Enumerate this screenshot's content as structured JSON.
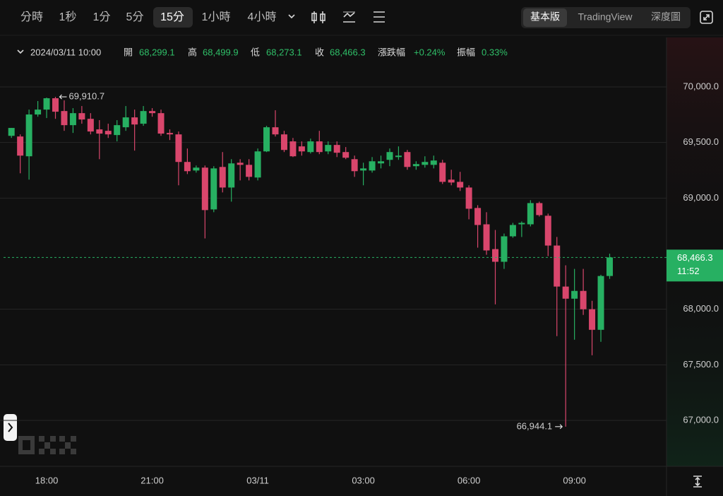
{
  "toolbar": {
    "intervals": [
      "分時",
      "1秒",
      "1分",
      "5分",
      "15分",
      "1小時",
      "4小時"
    ],
    "views": [
      "基本版",
      "TradingView",
      "深度圖"
    ]
  },
  "header": {
    "datetime": "2024/03/11 10:00",
    "fields": [
      {
        "label": "開",
        "value": "68,299.1"
      },
      {
        "label": "高",
        "value": "68,499.9"
      },
      {
        "label": "低",
        "value": "68,273.1"
      },
      {
        "label": "收",
        "value": "68,466.3"
      },
      {
        "label": "漲跌幅",
        "value": "+0.24%"
      },
      {
        "label": "振幅",
        "value": "0.33%"
      }
    ]
  },
  "chart_data": {
    "type": "candlestick",
    "categories": [
      null,
      null,
      null,
      null,
      "18:00",
      null,
      null,
      null,
      null,
      null,
      null,
      null,
      null,
      null,
      null,
      null,
      "21:00",
      null,
      null,
      null,
      null,
      null,
      null,
      null,
      null,
      null,
      null,
      null,
      "03/11",
      null,
      null,
      null,
      null,
      null,
      null,
      null,
      null,
      null,
      null,
      null,
      "03:00",
      null,
      null,
      null,
      null,
      null,
      null,
      null,
      null,
      null,
      null,
      null,
      "06:00",
      null,
      null,
      null,
      null,
      null,
      null,
      null,
      null,
      null,
      null,
      null,
      "09:00",
      null,
      null,
      null,
      null
    ],
    "open": [
      69560,
      69554,
      69376,
      69752,
      69796,
      69898,
      69783,
      69656,
      69764,
      69713,
      69618,
      69605,
      69567,
      69637,
      69726,
      69669,
      69783,
      69764,
      69586,
      69573,
      69325,
      69248,
      69274,
      68898,
      69280,
      69095,
      69318,
      69299,
      69185,
      69420,
      69637,
      69573,
      69510,
      69465,
      69414,
      69510,
      69420,
      69478,
      69414,
      69350,
      69248,
      69248,
      69312,
      69344,
      69369,
      69414,
      69287,
      69299,
      69299,
      69318,
      69166,
      69146,
      69095,
      68911,
      68764,
      68541,
      68427,
      68656,
      68764,
      68764,
      68955,
      68841,
      68573,
      68204,
      68095,
      68165,
      68000,
      67815,
      68299.1
    ],
    "high": [
      69631,
      69573,
      69796,
      69873,
      69904,
      69910.7,
      69879,
      69809,
      69828,
      69764,
      69701,
      69669,
      69701,
      69828,
      69796,
      69828,
      69809,
      69796,
      69618,
      69599,
      69446,
      69293,
      69293,
      69287,
      69414,
      69350,
      69350,
      69350,
      69446,
      69650,
      69790,
      69605,
      69541,
      69510,
      69535,
      69605,
      69510,
      69510,
      69459,
      69382,
      69318,
      69369,
      69382,
      69446,
      69465,
      69433,
      69331,
      69376,
      69382,
      69344,
      69255,
      69236,
      69115,
      68936,
      68873,
      68713,
      68681,
      68777,
      68790,
      68981,
      68968,
      68860,
      68650,
      68395,
      68363,
      68363,
      68076,
      68310,
      68499.9
    ],
    "low": [
      69541,
      69223,
      69166,
      69732,
      69720,
      69713,
      69605,
      69586,
      69669,
      69573,
      69350,
      69541,
      69510,
      69605,
      69427,
      69650,
      69732,
      69560,
      69522,
      69115,
      69216,
      69229,
      68637,
      68873,
      69051,
      68968,
      69159,
      69159,
      69159,
      69414,
      69554,
      69414,
      69369,
      69382,
      69401,
      69395,
      69395,
      69369,
      69350,
      69191,
      69115,
      69229,
      69267,
      69287,
      69344,
      69255,
      69255,
      69274,
      69267,
      69127,
      69115,
      69064,
      68809,
      68554,
      68490,
      68044,
      68363,
      68643,
      68650,
      68745,
      68834,
      68478,
      67758,
      66944.1,
      67726,
      67949,
      67586,
      67707,
      68273.1
    ],
    "close": [
      69631,
      69382,
      69752,
      69796,
      69898,
      69777,
      69656,
      69764,
      69707,
      69599,
      69580,
      69573,
      69656,
      69726,
      69662,
      69783,
      69764,
      69580,
      69573,
      69325,
      69242,
      69274,
      68892,
      69267,
      69095,
      69312,
      69299,
      69191,
      69420,
      69637,
      69573,
      69433,
      69376,
      69420,
      69510,
      69414,
      69478,
      69408,
      69363,
      69242,
      69267,
      69331,
      69331,
      69414,
      69382,
      69280,
      69306,
      69325,
      69338,
      69146,
      69140,
      69095,
      68904,
      68758,
      68529,
      68427,
      68656,
      68758,
      68777,
      68955,
      68847,
      68573,
      68204,
      68095,
      68165,
      68000,
      67815,
      68299.1,
      68466.3
    ],
    "up_color": "#27b062",
    "down_color": "#d9466c",
    "ylim": [
      66587,
      70445
    ],
    "yticks": [
      {
        "value": 70000,
        "label": "70,000.0"
      },
      {
        "value": 69500,
        "label": "69,500.0"
      },
      {
        "value": 69000,
        "label": "69,000.0"
      },
      {
        "value": 68000,
        "label": "68,000.0"
      },
      {
        "value": 67500,
        "label": "67,500.0"
      },
      {
        "value": 67000,
        "label": "67,000.0"
      }
    ],
    "grid": true,
    "current_price": {
      "value": 68466.3,
      "label": "68,466.3"
    },
    "countdown": "11:52",
    "max_annotation": {
      "value": 69910.7,
      "label": "69,910.7"
    },
    "min_annotation": {
      "value": 66944.1,
      "label": "66,944.1"
    }
  }
}
